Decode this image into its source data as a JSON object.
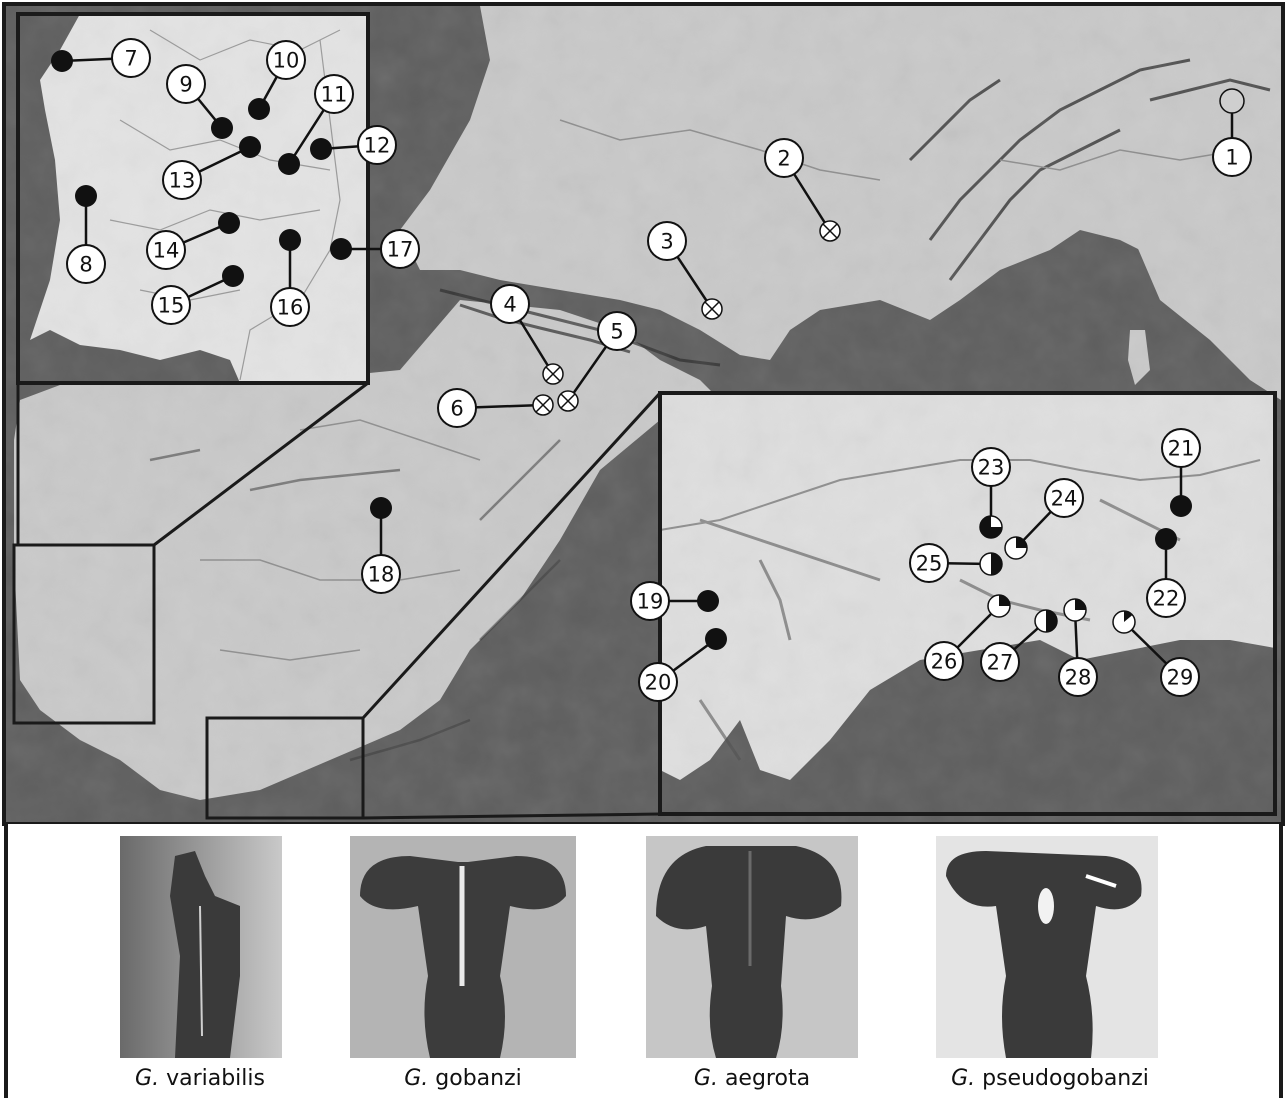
{
  "sites": [
    {
      "label": "1",
      "symbol": "grey"
    },
    {
      "label": "2",
      "symbol": "crossed"
    },
    {
      "label": "3",
      "symbol": "crossed"
    },
    {
      "label": "4",
      "symbol": "crossed"
    },
    {
      "label": "5",
      "symbol": "crossed"
    },
    {
      "label": "6",
      "symbol": "crossed"
    },
    {
      "label": "7",
      "symbol": "black"
    },
    {
      "label": "8",
      "symbol": "black"
    },
    {
      "label": "9",
      "symbol": "black"
    },
    {
      "label": "10",
      "symbol": "black"
    },
    {
      "label": "11",
      "symbol": "black"
    },
    {
      "label": "12",
      "symbol": "black"
    },
    {
      "label": "13",
      "symbol": "black"
    },
    {
      "label": "14",
      "symbol": "black"
    },
    {
      "label": "15",
      "symbol": "black"
    },
    {
      "label": "16",
      "symbol": "black"
    },
    {
      "label": "17",
      "symbol": "black"
    },
    {
      "label": "18",
      "symbol": "black"
    },
    {
      "label": "19",
      "symbol": "black"
    },
    {
      "label": "20",
      "symbol": "black"
    },
    {
      "label": "21",
      "symbol": "black"
    },
    {
      "label": "22",
      "symbol": "black"
    },
    {
      "label": "23",
      "symbol": "pie-three-quarter"
    },
    {
      "label": "24",
      "symbol": "pie-quarter"
    },
    {
      "label": "25",
      "symbol": "pie-half"
    },
    {
      "label": "26",
      "symbol": "pie-quarter"
    },
    {
      "label": "27",
      "symbol": "pie-half"
    },
    {
      "label": "28",
      "symbol": "pie-quarter"
    },
    {
      "label": "29",
      "symbol": "pie-eighth"
    }
  ],
  "species": [
    {
      "genus": "G.",
      "epithet": "variabilis"
    },
    {
      "genus": "G.",
      "epithet": "gobanzi"
    },
    {
      "genus": "G.",
      "epithet": "aegrota"
    },
    {
      "genus": "G.",
      "epithet": "pseudogobanzi"
    }
  ],
  "colors": {
    "sea": "#5e5e5e",
    "land": "#c9c9c9",
    "inset_land": "#e3e3e3",
    "marker_black": "#111111",
    "marker_grey": "#cfcfcf",
    "marker_white": "#ffffff"
  }
}
